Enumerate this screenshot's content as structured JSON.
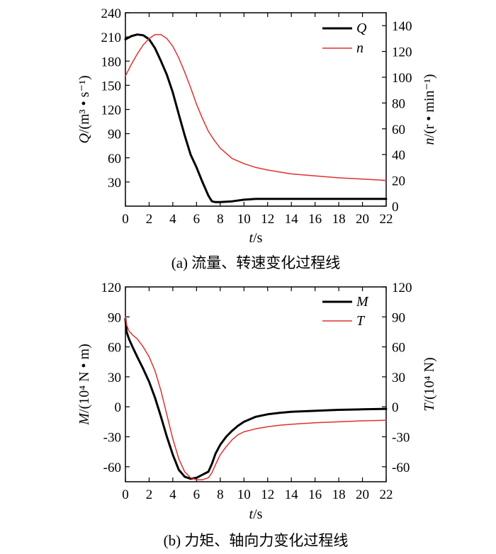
{
  "chart_data": [
    {
      "type": "line",
      "caption": "(a) 流量、转速变化过程线",
      "xlabel_italic": "t",
      "xlabel_rest": "/s",
      "ylabel_left_italic": "Q",
      "ylabel_left_rest": "/(m³ • s⁻¹)",
      "ylabel_right_italic": "n",
      "ylabel_right_rest": "/(r • min⁻¹)",
      "xlim": [
        0,
        22
      ],
      "ylim_left": [
        0,
        240
      ],
      "ylim_right": [
        0,
        150
      ],
      "x_ticks": [
        "0",
        "2",
        "4",
        "6",
        "8",
        "10",
        "12",
        "14",
        "16",
        "18",
        "20",
        "22"
      ],
      "y_left_ticks": [
        "30",
        "60",
        "90",
        "120",
        "150",
        "180",
        "210",
        "240"
      ],
      "y_right_ticks": [
        "0",
        "20",
        "40",
        "60",
        "80",
        "100",
        "120",
        "140"
      ],
      "legend_position": "top-right",
      "series": [
        {
          "name": "Q",
          "axis": "left",
          "color": "#000000",
          "x": [
            0,
            0.5,
            1.0,
            1.5,
            2.0,
            2.5,
            3.0,
            3.5,
            4.0,
            4.5,
            5.0,
            5.5,
            6.0,
            6.5,
            7.0,
            7.3,
            7.6,
            8.0,
            9.0,
            10.0,
            11.0,
            12.0,
            14.0,
            16.0,
            18.0,
            20.0,
            22.0
          ],
          "y": [
            207,
            211,
            213,
            212,
            207,
            196,
            180,
            163,
            141,
            114,
            88,
            64,
            48,
            30,
            13,
            6,
            5,
            5,
            6,
            8,
            9,
            9,
            9,
            9,
            9,
            9,
            9
          ]
        },
        {
          "name": "n",
          "axis": "right",
          "color": "#e03030",
          "x": [
            0,
            0.5,
            1.0,
            1.5,
            2.0,
            2.5,
            3.0,
            3.5,
            4.0,
            4.5,
            5.0,
            5.5,
            6.0,
            6.5,
            7.0,
            7.5,
            8.0,
            8.5,
            9.0,
            10.0,
            11.0,
            12.0,
            13.0,
            14.0,
            16.0,
            18.0,
            20.0,
            22.0
          ],
          "y": [
            101,
            110,
            118,
            125,
            130,
            133,
            133,
            130,
            124,
            115,
            104,
            92,
            79,
            68,
            58,
            51,
            45,
            41,
            37,
            33,
            30,
            28,
            26.5,
            25,
            23.5,
            22,
            21,
            20
          ]
        }
      ]
    },
    {
      "type": "line",
      "caption": "(b) 力矩、轴向力变化过程线",
      "xlabel_italic": "t",
      "xlabel_rest": "/s",
      "ylabel_left_italic": "M",
      "ylabel_left_rest": "/(10⁴ N • m)",
      "ylabel_right_italic": "T",
      "ylabel_right_rest": "/(10⁴ N)",
      "xlim": [
        0,
        22
      ],
      "ylim_left": [
        -75,
        120
      ],
      "ylim_right": [
        -75,
        120
      ],
      "x_ticks": [
        "0",
        "2",
        "4",
        "6",
        "8",
        "10",
        "12",
        "14",
        "16",
        "18",
        "20",
        "22"
      ],
      "y_left_ticks": [
        "-60",
        "-30",
        "0",
        "30",
        "60",
        "90",
        "120"
      ],
      "y_right_ticks": [
        "-60",
        "-30",
        "0",
        "30",
        "60",
        "90",
        "120"
      ],
      "legend_position": "top-right",
      "series": [
        {
          "name": "M",
          "axis": "left",
          "color": "#000000",
          "x": [
            0,
            0.1,
            0.3,
            0.6,
            1.0,
            1.5,
            2.0,
            2.5,
            3.0,
            3.5,
            4.0,
            4.5,
            5.0,
            5.5,
            6.0,
            6.5,
            7.0,
            7.3,
            7.6,
            8.0,
            8.5,
            9.0,
            9.5,
            10.0,
            11.0,
            12.0,
            13.0,
            14.0,
            16.0,
            18.0,
            20.0,
            22.0
          ],
          "y": [
            88,
            75,
            68,
            60,
            50,
            38,
            25,
            9,
            -10,
            -30,
            -48,
            -63,
            -70,
            -72,
            -71,
            -68,
            -65,
            -57,
            -47,
            -38,
            -30,
            -24,
            -19,
            -15,
            -10,
            -7.5,
            -6,
            -5,
            -4,
            -3,
            -2.5,
            -2
          ]
        },
        {
          "name": "T",
          "axis": "right",
          "color": "#e03030",
          "x": [
            0,
            0.1,
            0.3,
            0.6,
            1.0,
            1.5,
            2.0,
            2.5,
            3.0,
            3.5,
            4.0,
            4.5,
            5.0,
            5.5,
            6.0,
            6.5,
            7.0,
            7.3,
            7.6,
            8.0,
            8.5,
            9.0,
            9.5,
            10.0,
            11.0,
            12.0,
            13.0,
            14.0,
            16.0,
            18.0,
            20.0,
            22.0
          ],
          "y": [
            90,
            82,
            76,
            72,
            68,
            60,
            50,
            36,
            16,
            -8,
            -32,
            -52,
            -65,
            -71,
            -73,
            -73,
            -71,
            -66,
            -58,
            -48,
            -40,
            -33,
            -28,
            -25,
            -22,
            -20,
            -18.5,
            -17.5,
            -16,
            -15,
            -14,
            -13.5
          ]
        }
      ]
    }
  ]
}
